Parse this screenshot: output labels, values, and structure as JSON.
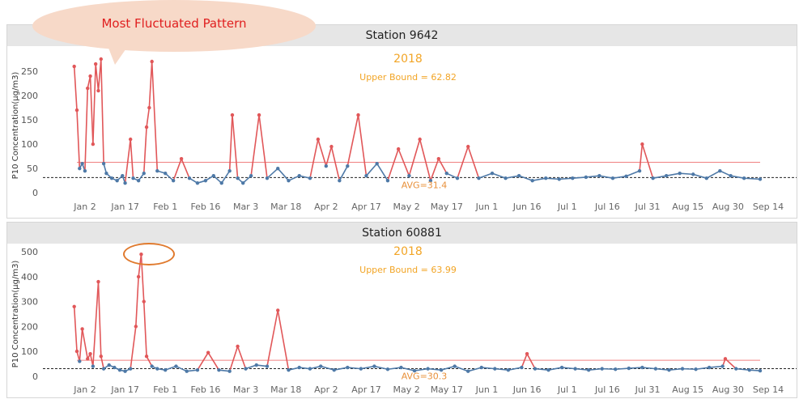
{
  "annotation": {
    "bubble_text": "Most Fluctuated Pattern"
  },
  "colors": {
    "above": "#e15759",
    "below": "#4e79a7",
    "bound": "#f08080",
    "orange": "#f2a526",
    "avg_label": "#e8903a"
  },
  "chart_data": [
    {
      "type": "line",
      "title": "Station  9642",
      "year_label": "2018",
      "bound_label": "Upper Bound = 62.82",
      "avg_label": "AVG=31.4",
      "ylabel": "P10 Concentration(μg/m3)",
      "x_tick_labels": [
        "Jan 2",
        "Jan 17",
        "Feb 1",
        "Feb 16",
        "Mar 3",
        "Mar 18",
        "Apr 2",
        "Apr 17",
        "May 2",
        "May 17",
        "Jun 1",
        "Jun 16",
        "Jul 1",
        "Jul 16",
        "Jul 31",
        "Aug 15",
        "Aug 30",
        "Sep 14"
      ],
      "x_range": [
        "2018-01-02",
        "2018-09-14"
      ],
      "yticks": [
        0,
        50,
        100,
        150,
        200,
        250
      ],
      "ylim": [
        -8,
        285
      ],
      "upper_bound": 62.82,
      "average": 31.4,
      "series": [
        {
          "x": [
            "2018-01-01",
            "2018-01-02",
            "2018-01-03",
            "2018-01-04",
            "2018-01-05",
            "2018-01-06",
            "2018-01-07",
            "2018-01-08",
            "2018-01-09",
            "2018-01-10",
            "2018-01-11",
            "2018-01-12",
            "2018-01-13",
            "2018-01-15",
            "2018-01-17",
            "2018-01-19",
            "2018-01-20",
            "2018-01-22",
            "2018-01-23",
            "2018-01-25",
            "2018-01-27",
            "2018-01-28",
            "2018-01-29",
            "2018-01-30",
            "2018-02-01",
            "2018-02-04",
            "2018-02-07",
            "2018-02-10",
            "2018-02-13",
            "2018-02-16",
            "2018-02-19",
            "2018-02-22",
            "2018-02-25",
            "2018-02-28",
            "2018-03-01",
            "2018-03-03",
            "2018-03-05",
            "2018-03-08",
            "2018-03-11",
            "2018-03-14",
            "2018-03-18",
            "2018-03-22",
            "2018-03-26",
            "2018-03-30",
            "2018-04-02",
            "2018-04-05",
            "2018-04-07",
            "2018-04-10",
            "2018-04-13",
            "2018-04-17",
            "2018-04-20",
            "2018-04-24",
            "2018-04-28",
            "2018-05-02",
            "2018-05-06",
            "2018-05-10",
            "2018-05-14",
            "2018-05-17",
            "2018-05-20",
            "2018-05-24",
            "2018-05-28",
            "2018-06-01",
            "2018-06-06",
            "2018-06-11",
            "2018-06-16",
            "2018-06-21",
            "2018-06-26",
            "2018-07-01",
            "2018-07-06",
            "2018-07-11",
            "2018-07-16",
            "2018-07-21",
            "2018-07-26",
            "2018-07-31",
            "2018-08-01",
            "2018-08-05",
            "2018-08-10",
            "2018-08-15",
            "2018-08-20",
            "2018-08-25",
            "2018-08-30",
            "2018-09-03",
            "2018-09-08",
            "2018-09-14"
          ],
          "y": [
            260,
            170,
            50,
            60,
            45,
            215,
            240,
            100,
            265,
            210,
            275,
            60,
            40,
            30,
            25,
            35,
            20,
            110,
            30,
            25,
            40,
            135,
            175,
            270,
            45,
            40,
            25,
            70,
            30,
            20,
            25,
            35,
            20,
            45,
            160,
            30,
            20,
            35,
            160,
            30,
            50,
            25,
            35,
            30,
            110,
            55,
            95,
            25,
            55,
            160,
            35,
            60,
            25,
            90,
            35,
            110,
            25,
            70,
            40,
            30,
            95,
            30,
            40,
            30,
            35,
            25,
            30,
            28,
            30,
            32,
            35,
            30,
            34,
            45,
            100,
            30,
            35,
            40,
            38,
            30,
            45,
            35,
            30,
            28
          ]
        }
      ]
    },
    {
      "type": "line",
      "title": "Station  60881",
      "year_label": "2018",
      "bound_label": "Upper Bound = 63.99",
      "avg_label": "AVG=30.3",
      "ylabel": "P10 Concentration(μg/m3)",
      "x_tick_labels": [
        "Jan 2",
        "Jan 17",
        "Feb 1",
        "Feb 16",
        "Mar 3",
        "Mar 18",
        "Apr 2",
        "Apr 17",
        "May 2",
        "May 17",
        "Jun 1",
        "Jun 16",
        "Jul 1",
        "Jul 16",
        "Jul 31",
        "Aug 15",
        "Aug 30",
        "Sep 14"
      ],
      "x_range": [
        "2018-01-02",
        "2018-09-14"
      ],
      "yticks": [
        0,
        100,
        200,
        300,
        400,
        500
      ],
      "ylim": [
        -20,
        520
      ],
      "upper_bound": 63.99,
      "average": 30.3,
      "series": [
        {
          "x": [
            "2018-01-01",
            "2018-01-02",
            "2018-01-03",
            "2018-01-04",
            "2018-01-06",
            "2018-01-07",
            "2018-01-08",
            "2018-01-10",
            "2018-01-11",
            "2018-01-12",
            "2018-01-14",
            "2018-01-16",
            "2018-01-18",
            "2018-01-20",
            "2018-01-22",
            "2018-01-24",
            "2018-01-25",
            "2018-01-26",
            "2018-01-27",
            "2018-01-28",
            "2018-01-30",
            "2018-02-01",
            "2018-02-04",
            "2018-02-08",
            "2018-02-12",
            "2018-02-16",
            "2018-02-20",
            "2018-02-24",
            "2018-02-28",
            "2018-03-03",
            "2018-03-06",
            "2018-03-10",
            "2018-03-14",
            "2018-03-18",
            "2018-03-22",
            "2018-03-26",
            "2018-03-30",
            "2018-04-03",
            "2018-04-08",
            "2018-04-13",
            "2018-04-18",
            "2018-04-23",
            "2018-04-28",
            "2018-05-03",
            "2018-05-08",
            "2018-05-13",
            "2018-05-18",
            "2018-05-23",
            "2018-05-28",
            "2018-06-02",
            "2018-06-07",
            "2018-06-12",
            "2018-06-17",
            "2018-06-19",
            "2018-06-22",
            "2018-06-27",
            "2018-07-02",
            "2018-07-07",
            "2018-07-12",
            "2018-07-17",
            "2018-07-22",
            "2018-07-27",
            "2018-08-01",
            "2018-08-06",
            "2018-08-11",
            "2018-08-16",
            "2018-08-21",
            "2018-08-26",
            "2018-08-31",
            "2018-09-01",
            "2018-09-05",
            "2018-09-10",
            "2018-09-14"
          ],
          "y": [
            280,
            100,
            60,
            190,
            70,
            90,
            40,
            380,
            80,
            30,
            45,
            35,
            25,
            20,
            30,
            200,
            400,
            490,
            300,
            80,
            40,
            30,
            25,
            40,
            20,
            25,
            95,
            25,
            20,
            120,
            30,
            45,
            40,
            265,
            25,
            35,
            30,
            40,
            25,
            35,
            30,
            40,
            28,
            35,
            22,
            30,
            25,
            40,
            20,
            35,
            30,
            25,
            35,
            90,
            30,
            25,
            35,
            30,
            25,
            30,
            28,
            32,
            35,
            30,
            25,
            30,
            28,
            35,
            40,
            70,
            30,
            25,
            22
          ]
        }
      ]
    }
  ]
}
